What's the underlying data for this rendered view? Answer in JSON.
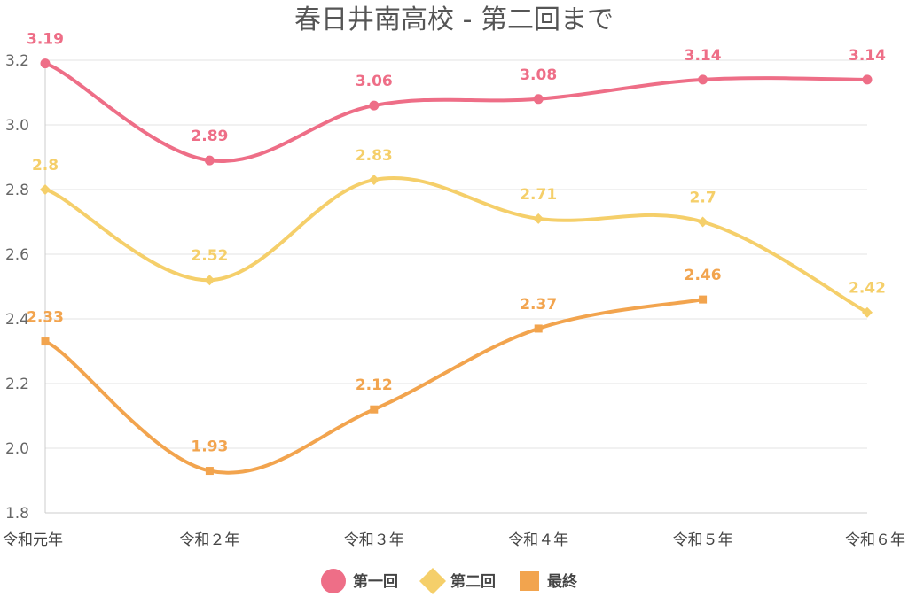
{
  "chart_data": {
    "type": "line",
    "title": "春日井南高校 - 第二回まで",
    "xlabel": "",
    "ylabel": "",
    "categories": [
      "令和元年",
      "令和２年",
      "令和３年",
      "令和４年",
      "令和５年",
      "令和６年"
    ],
    "ylim": [
      1.8,
      3.2
    ],
    "yticks": [
      "1.8",
      "2.0",
      "2.2",
      "2.4",
      "2.6",
      "2.8",
      "3.0",
      "3.2"
    ],
    "grid": true,
    "legend_position": "bottom-center",
    "series": [
      {
        "name": "第一回",
        "color": "#ee6e87",
        "marker": "circle",
        "values": [
          3.19,
          2.89,
          3.06,
          3.08,
          3.14,
          3.14
        ],
        "labels": [
          "3.19",
          "2.89",
          "3.06",
          "3.08",
          "3.14",
          "3.14"
        ]
      },
      {
        "name": "第二回",
        "color": "#f5cf6a",
        "marker": "diamond",
        "values": [
          2.8,
          2.52,
          2.83,
          2.71,
          2.7,
          2.42
        ],
        "labels": [
          "2.8",
          "2.52",
          "2.83",
          "2.71",
          "2.7",
          "2.42"
        ]
      },
      {
        "name": "最終",
        "color": "#f2a44e",
        "marker": "square",
        "values": [
          2.33,
          1.93,
          2.12,
          2.37,
          2.46,
          null
        ],
        "labels": [
          "2.33",
          "1.93",
          "2.12",
          "2.37",
          "2.46",
          null
        ]
      }
    ]
  }
}
